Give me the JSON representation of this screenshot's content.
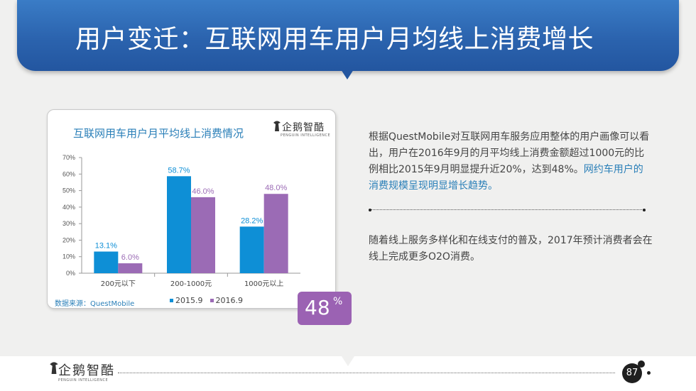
{
  "slide": {
    "title": "用户变迁：互联网用车用户月均线上消费增长",
    "page_number": "87",
    "brand": "企鹅智酷",
    "brand_sub": "PENGUIN INTELLIGENCE"
  },
  "chart_panel": {
    "title": "互联网用车用户月平均线上消费情况",
    "source": "数据来源：QuestMobile",
    "brand": "企鹅智酷",
    "brand_sub": "PENGUIN INTELLIGENCE"
  },
  "badge": {
    "value": "48",
    "unit": "%"
  },
  "text": {
    "para1_plain": "根据QuestMobile对互联网用车服务应用整体的用户画像可以看出，用户在2016年9月的月平均线上消费金额超过1000元的比例相比2015年9月明显提升近20%，达到48%。",
    "para1_highlight": "网约车用户的消费规模呈现明显增长趋势。",
    "para2": "随着线上服务多样化和在线支付的普及，2017年预计消费者会在线上完成更多O2O消费。"
  },
  "colors": {
    "header": "#2b63ae",
    "accent": "#2a7fb8",
    "series_2015": "#0e8fd6",
    "series_2016": "#9b6bb5",
    "badge": "#9b62b3"
  },
  "chart_data": {
    "type": "bar",
    "categories": [
      "200元以下",
      "200-1000元",
      "1000元以上"
    ],
    "series": [
      {
        "name": "2015.9",
        "values": [
          13.1,
          58.7,
          28.2
        ],
        "labels": [
          "13.1%",
          "58.7%",
          "28.2%"
        ],
        "color": "#0e8fd6"
      },
      {
        "name": "2016.9",
        "values": [
          6.0,
          46.0,
          48.0
        ],
        "labels": [
          "6.0%",
          "46.0%",
          "48.0%"
        ],
        "color": "#9b6bb5"
      }
    ],
    "yticks": [
      "0%",
      "10%",
      "20%",
      "30%",
      "40%",
      "50%",
      "60%",
      "70%"
    ],
    "ylim": [
      0,
      70
    ],
    "grid": false,
    "legend": "bottom"
  }
}
